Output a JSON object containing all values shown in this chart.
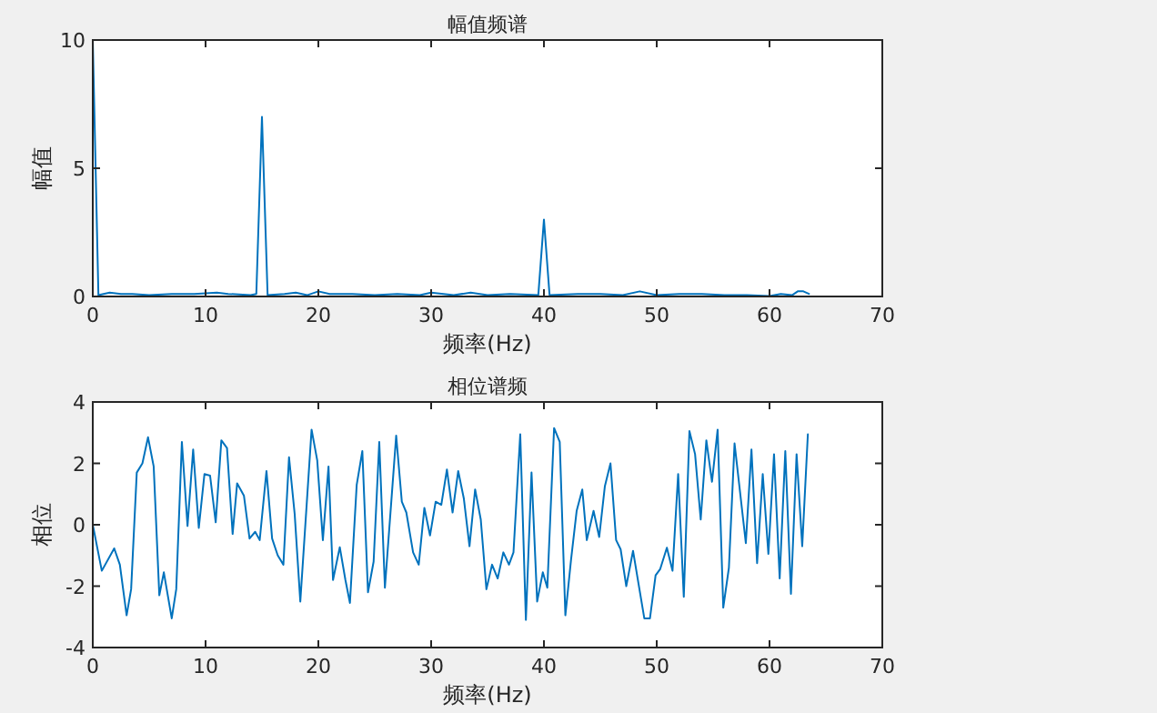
{
  "chart_data": [
    {
      "type": "line",
      "title": "幅值频谱",
      "xlabel": "频率(Hz)",
      "ylabel": "幅值",
      "xlim": [
        0,
        70
      ],
      "ylim": [
        0,
        10
      ],
      "xticks": [
        0,
        10,
        20,
        30,
        40,
        50,
        60,
        70
      ],
      "yticks": [
        0,
        5,
        10
      ],
      "x": [
        0,
        0.5,
        1.5,
        2.5,
        3.5,
        5,
        7,
        9,
        11,
        12,
        14,
        14.5,
        15,
        15.5,
        17,
        18,
        19,
        20,
        21,
        23,
        25,
        27,
        29,
        30,
        32,
        33.5,
        35,
        37,
        39.5,
        40,
        40.5,
        43,
        45,
        47,
        48.5,
        50,
        52,
        54,
        56,
        58,
        60,
        61,
        62,
        62.5,
        63,
        63.5
      ],
      "series": [
        {
          "color": "#0072bd",
          "values": [
            10,
            0.05,
            0.15,
            0.1,
            0.1,
            0.05,
            0.1,
            0.1,
            0.15,
            0.1,
            0.05,
            0.1,
            7.0,
            0.05,
            0.1,
            0.15,
            0.05,
            0.2,
            0.1,
            0.1,
            0.05,
            0.1,
            0.05,
            0.15,
            0.05,
            0.15,
            0.05,
            0.1,
            0.05,
            3.0,
            0.05,
            0.1,
            0.1,
            0.05,
            0.2,
            0.05,
            0.1,
            0.1,
            0.05,
            0.05,
            0.02,
            0.1,
            0.05,
            0.2,
            0.2,
            0.1
          ]
        }
      ]
    },
    {
      "type": "line",
      "title": "相位谱频",
      "xlabel": "频率(Hz)",
      "ylabel": "相位",
      "xlim": [
        0,
        70
      ],
      "ylim": [
        -4,
        4
      ],
      "xticks": [
        0,
        10,
        20,
        30,
        40,
        50,
        60,
        70
      ],
      "yticks": [
        -4,
        -2,
        0,
        2,
        4
      ],
      "x": [
        0,
        0.8,
        1.9,
        2.4,
        3.0,
        3.4,
        3.9,
        4.4,
        4.9,
        5.4,
        5.9,
        6.3,
        7.0,
        7.4,
        7.9,
        8.4,
        8.9,
        9.4,
        9.9,
        10.4,
        10.9,
        11.4,
        11.9,
        12.4,
        12.8,
        13.4,
        13.9,
        14.4,
        14.8,
        15.4,
        15.9,
        16.4,
        16.9,
        17.4,
        17.9,
        18.4,
        19.4,
        19.9,
        20.4,
        20.9,
        21.3,
        21.9,
        22.4,
        22.8,
        23.4,
        23.9,
        24.4,
        24.9,
        25.4,
        25.9,
        26.9,
        27.4,
        27.8,
        28.4,
        28.9,
        29.4,
        29.9,
        30.4,
        30.9,
        31.4,
        31.9,
        32.4,
        32.9,
        33.4,
        33.9,
        34.4,
        34.9,
        35.4,
        35.9,
        36.4,
        36.9,
        37.3,
        37.9,
        38.4,
        38.9,
        39.4,
        39.9,
        40.3,
        40.9,
        41.4,
        41.9,
        42.4,
        42.9,
        43.4,
        43.8,
        44.4,
        44.9,
        45.4,
        45.9,
        46.4,
        46.8,
        47.3,
        47.9,
        48.4,
        48.9,
        49.4,
        49.9,
        50.3,
        50.9,
        51.4,
        51.9,
        52.4,
        52.9,
        53.4,
        53.9,
        54.4,
        54.9,
        55.4,
        55.9,
        56.4,
        56.9,
        57.9,
        58.4,
        58.9,
        59.4,
        59.9,
        60.4,
        60.9,
        61.4,
        61.9,
        62.4,
        62.9,
        63.4
      ],
      "series": [
        {
          "color": "#0072bd",
          "values": [
            0,
            -1.5,
            -0.77,
            -1.3,
            -2.95,
            -2.1,
            1.7,
            2.0,
            2.85,
            1.9,
            -2.3,
            -1.55,
            -3.05,
            -2.1,
            2.7,
            -0.04,
            2.45,
            -0.1,
            1.65,
            1.6,
            0.08,
            2.75,
            2.5,
            -0.3,
            1.35,
            0.95,
            -0.45,
            -0.23,
            -0.5,
            1.75,
            -0.45,
            -1.0,
            -1.3,
            2.2,
            0.35,
            -2.5,
            3.1,
            2.1,
            -0.5,
            1.9,
            -1.8,
            -0.73,
            -1.8,
            -2.55,
            1.3,
            2.4,
            -2.2,
            -1.2,
            2.7,
            -2.05,
            2.9,
            0.75,
            0.4,
            -0.9,
            -1.3,
            0.55,
            -0.35,
            0.75,
            0.65,
            1.8,
            0.4,
            1.75,
            0.85,
            -0.7,
            1.15,
            0.17,
            -2.1,
            -1.3,
            -1.75,
            -0.9,
            -1.3,
            -0.9,
            2.95,
            -3.1,
            1.7,
            -2.5,
            -1.55,
            -2.05,
            3.15,
            2.7,
            -2.95,
            -1.15,
            0.45,
            1.15,
            -0.5,
            0.45,
            -0.4,
            1.25,
            2.0,
            -0.5,
            -0.8,
            -2.0,
            -0.85,
            -1.95,
            -3.05,
            -3.05,
            -1.65,
            -1.45,
            -0.75,
            -1.5,
            1.65,
            -2.35,
            3.05,
            2.3,
            0.17,
            2.75,
            1.4,
            3.1,
            -2.7,
            -1.4,
            2.65,
            -0.6,
            2.45,
            -1.25,
            1.65,
            -0.95,
            2.3,
            -1.75,
            2.4,
            -2.25,
            2.3,
            -0.7,
            2.95
          ]
        }
      ]
    }
  ]
}
